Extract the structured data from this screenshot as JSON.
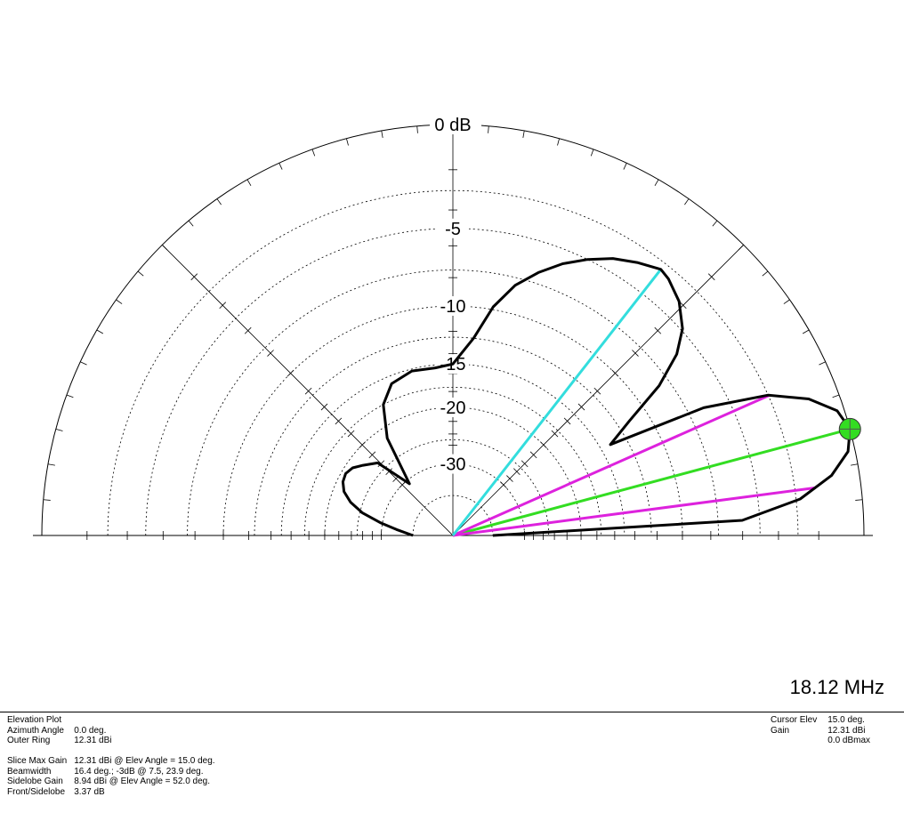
{
  "chart_data": {
    "type": "polar-elevation",
    "ring_labels": [
      "0 dB",
      "-5",
      "-10",
      "-15",
      "-20",
      "-30"
    ],
    "ring_values_db": [
      0,
      -5,
      -10,
      -15,
      -20,
      -30
    ],
    "pattern": {
      "elev_deg": [
        0,
        3,
        6,
        9,
        12,
        15,
        18,
        21,
        24,
        27,
        30,
        33,
        36,
        39,
        42,
        46,
        50,
        52,
        56,
        60,
        64,
        68,
        72,
        76,
        80,
        84,
        90,
        96,
        104,
        112,
        118,
        124,
        130,
        136,
        142,
        146,
        150,
        154,
        158,
        162,
        166,
        170,
        174,
        180
      ],
      "gain_dbmax": [
        -40,
        -6,
        -2.8,
        -1.2,
        -0.3,
        0,
        -0.3,
        -1.3,
        -3,
        -6.5,
        -14,
        -11.5,
        -8.2,
        -6.1,
        -4.9,
        -4,
        -3.5,
        -3.37,
        -3.8,
        -4.3,
        -5,
        -5.8,
        -6.8,
        -8,
        -9.8,
        -12.5,
        -15,
        -15.3,
        -15.2,
        -15.8,
        -17.5,
        -21.5,
        -31,
        -23.5,
        -22,
        -21,
        -20.6,
        -20.8,
        -21.5,
        -23,
        -25.5,
        -29.5,
        -34,
        -40
      ]
    },
    "lines": [
      {
        "name": "max-gain",
        "color": "#33dd22",
        "elev_deg": 15.0
      },
      {
        "name": "beam-edge-low",
        "color": "#dd22dd",
        "elev_deg": 7.5
      },
      {
        "name": "beam-edge-high",
        "color": "#dd22dd",
        "elev_deg": 23.9
      },
      {
        "name": "sidelobe",
        "color": "#33dddd",
        "elev_deg": 52.0
      }
    ],
    "cursor": {
      "elev_deg": 15.0,
      "color": "#33dd22"
    },
    "outer_ring_dbi": 12.31
  },
  "frequency": "18.12 MHz",
  "info": {
    "rows": [
      {
        "k": "Elevation Plot",
        "v": ""
      },
      {
        "k": "Azimuth Angle",
        "v": "0.0 deg."
      },
      {
        "k": "Outer Ring",
        "v": "12.31 dBi"
      }
    ],
    "rows2": [
      {
        "k": "Slice Max Gain",
        "v": "12.31 dBi @ Elev Angle = 15.0 deg."
      },
      {
        "k": "Beamwidth",
        "v": "16.4 deg.; -3dB @ 7.5, 23.9 deg."
      },
      {
        "k": "Sidelobe Gain",
        "v": "8.94 dBi @ Elev Angle = 52.0 deg."
      },
      {
        "k": "Front/Sidelobe",
        "v": "3.37 dB"
      }
    ]
  },
  "cursor_info": {
    "rows": [
      {
        "k": "Cursor Elev",
        "v": "15.0 deg."
      },
      {
        "k": "Gain",
        "v": "12.31 dBi"
      },
      {
        "k": "",
        "v": "0.0 dBmax"
      }
    ]
  }
}
